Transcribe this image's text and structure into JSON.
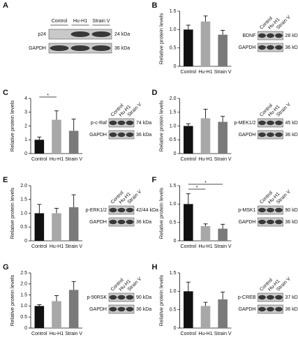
{
  "panel_a": {
    "panel": "A",
    "blot": {
      "lanes": [
        "Control",
        "Hu-H1",
        "Strain V"
      ],
      "rows": [
        {
          "label": "p24",
          "size": "24 kDa"
        },
        {
          "label": "GAPDH",
          "size": "36 kDa"
        }
      ]
    }
  },
  "chart_data": [
    {
      "type": "bar",
      "panel": "B",
      "y_label": "Relative protein levels",
      "categories": [
        "Control",
        "Hu-H1",
        "Strain V"
      ],
      "colors": [
        "#111111",
        "#a8a8a8",
        "#7a7a7a"
      ],
      "values": [
        1.0,
        1.22,
        0.86
      ],
      "errors": [
        0.12,
        0.15,
        0.12
      ],
      "ylim": [
        0,
        1.5
      ],
      "yticks": [
        0,
        0.5,
        {
          "value": 1,
          "label": "1.0"
        },
        1.5
      ],
      "significance": [],
      "blot": {
        "lanes": [
          "Control",
          "Hu-H1",
          "Strain V"
        ],
        "rows": [
          {
            "label": "BDNF",
            "size": "28 kDa"
          },
          {
            "label": "GAPDH",
            "size": "36 kDa"
          }
        ]
      }
    },
    {
      "type": "bar",
      "panel": "C",
      "y_label": "Relative protein levels",
      "categories": [
        "Control",
        "Hu-H1",
        "Strain V"
      ],
      "colors": [
        "#111111",
        "#a8a8a8",
        "#7a7a7a"
      ],
      "values": [
        1.0,
        2.45,
        1.65
      ],
      "errors": [
        0.2,
        0.65,
        0.85
      ],
      "ylim": [
        0,
        4
      ],
      "yticks": [
        0,
        1,
        2,
        3,
        4
      ],
      "significance": [
        {
          "between": [
            0,
            1
          ],
          "label": "*"
        }
      ],
      "blot": {
        "lanes": [
          "Control",
          "Hu-H1",
          "Strain V"
        ],
        "rows": [
          {
            "label": "p-c-Raf",
            "size": "74 kDa"
          },
          {
            "label": "GAPDH",
            "size": "36 kDa"
          }
        ]
      }
    },
    {
      "type": "bar",
      "panel": "D",
      "y_label": "Relative protein levels",
      "categories": [
        "Control",
        "Hu-H1",
        "Strain V"
      ],
      "colors": [
        "#111111",
        "#a8a8a8",
        "#7a7a7a"
      ],
      "values": [
        1.0,
        1.28,
        1.15
      ],
      "errors": [
        0.08,
        0.33,
        0.2
      ],
      "ylim": [
        0,
        2
      ],
      "yticks": [
        0,
        0.5,
        {
          "value": 1,
          "label": "1.0"
        },
        1.5,
        {
          "value": 2,
          "label": "2.0"
        }
      ],
      "significance": [],
      "blot": {
        "lanes": [
          "Control",
          "Hu-H1",
          "Strain V"
        ],
        "rows": [
          {
            "label": "p-MEK1/2",
            "size": "45 kDa"
          },
          {
            "label": "GAPDH",
            "size": "36 kDa"
          }
        ]
      }
    },
    {
      "type": "bar",
      "panel": "E",
      "y_label": "Relative protein levels",
      "categories": [
        "Control",
        "Hu-H1",
        "Strain V"
      ],
      "colors": [
        "#111111",
        "#a8a8a8",
        "#7a7a7a"
      ],
      "values": [
        1.0,
        1.0,
        1.22
      ],
      "errors": [
        0.32,
        0.18,
        0.45
      ],
      "ylim": [
        0,
        2
      ],
      "yticks": [
        0,
        0.5,
        {
          "value": 1,
          "label": "1.0"
        },
        1.5,
        {
          "value": 2,
          "label": "2.0"
        }
      ],
      "significance": [],
      "blot": {
        "lanes": [
          "Control",
          "Hu-H1",
          "Strain V"
        ],
        "rows": [
          {
            "label": "p-ERK1/2",
            "size": "42/44 kDa"
          },
          {
            "label": "GAPDH",
            "size": "36 kDa"
          }
        ]
      }
    },
    {
      "type": "bar",
      "panel": "F",
      "y_label": "Relative protein levels",
      "categories": [
        "Control",
        "Hu-H1",
        "Strain V"
      ],
      "colors": [
        "#111111",
        "#a8a8a8",
        "#7a7a7a"
      ],
      "values": [
        1.0,
        0.4,
        0.33
      ],
      "errors": [
        0.28,
        0.06,
        0.12
      ],
      "ylim": [
        0,
        1.5
      ],
      "yticks": [
        0,
        0.5,
        {
          "value": 1,
          "label": "1.0"
        },
        1.5
      ],
      "significance": [
        {
          "between": [
            0,
            2
          ],
          "label": "*"
        },
        {
          "between": [
            0,
            1
          ],
          "label": "*"
        }
      ],
      "blot": {
        "lanes": [
          "Control",
          "Hu-H1",
          "Strain V"
        ],
        "rows": [
          {
            "label": "p-MSK1",
            "size": "90 kDa"
          },
          {
            "label": "GAPDH",
            "size": "36 kDa"
          }
        ]
      }
    },
    {
      "type": "bar",
      "panel": "G",
      "y_label": "Relative protein levels",
      "categories": [
        "Control",
        "Hu-H1",
        "Strain V"
      ],
      "colors": [
        "#111111",
        "#a8a8a8",
        "#7a7a7a"
      ],
      "values": [
        1.0,
        1.22,
        1.73
      ],
      "errors": [
        0.06,
        0.25,
        0.38
      ],
      "ylim": [
        0,
        2.5
      ],
      "yticks": [
        0,
        0.5,
        {
          "value": 1,
          "label": "1.0"
        },
        1.5,
        {
          "value": 2,
          "label": "2.0"
        },
        2.5
      ],
      "significance": [],
      "blot": {
        "lanes": [
          "Control",
          "Hu-H1",
          "Strain V"
        ],
        "rows": [
          {
            "label": "p-90RSK",
            "size": "90 kDa"
          },
          {
            "label": "GAPDH",
            "size": "36 kDa"
          }
        ]
      }
    },
    {
      "type": "bar",
      "panel": "H",
      "y_label": "Relative protein levels",
      "categories": [
        "Control",
        "Hu-H1",
        "Strain V"
      ],
      "colors": [
        "#111111",
        "#a8a8a8",
        "#7a7a7a"
      ],
      "values": [
        1.0,
        0.6,
        0.78
      ],
      "errors": [
        0.25,
        0.1,
        0.2
      ],
      "ylim": [
        0,
        1.5
      ],
      "yticks": [
        0,
        0.5,
        {
          "value": 1,
          "label": "1.0"
        },
        1.5
      ],
      "significance": [],
      "blot": {
        "lanes": [
          "Control",
          "Hu-H1",
          "Strain V"
        ],
        "rows": [
          {
            "label": "p-CREB",
            "size": "37 kDa"
          },
          {
            "label": "GAPDH",
            "size": "36 kDa"
          }
        ]
      }
    }
  ]
}
